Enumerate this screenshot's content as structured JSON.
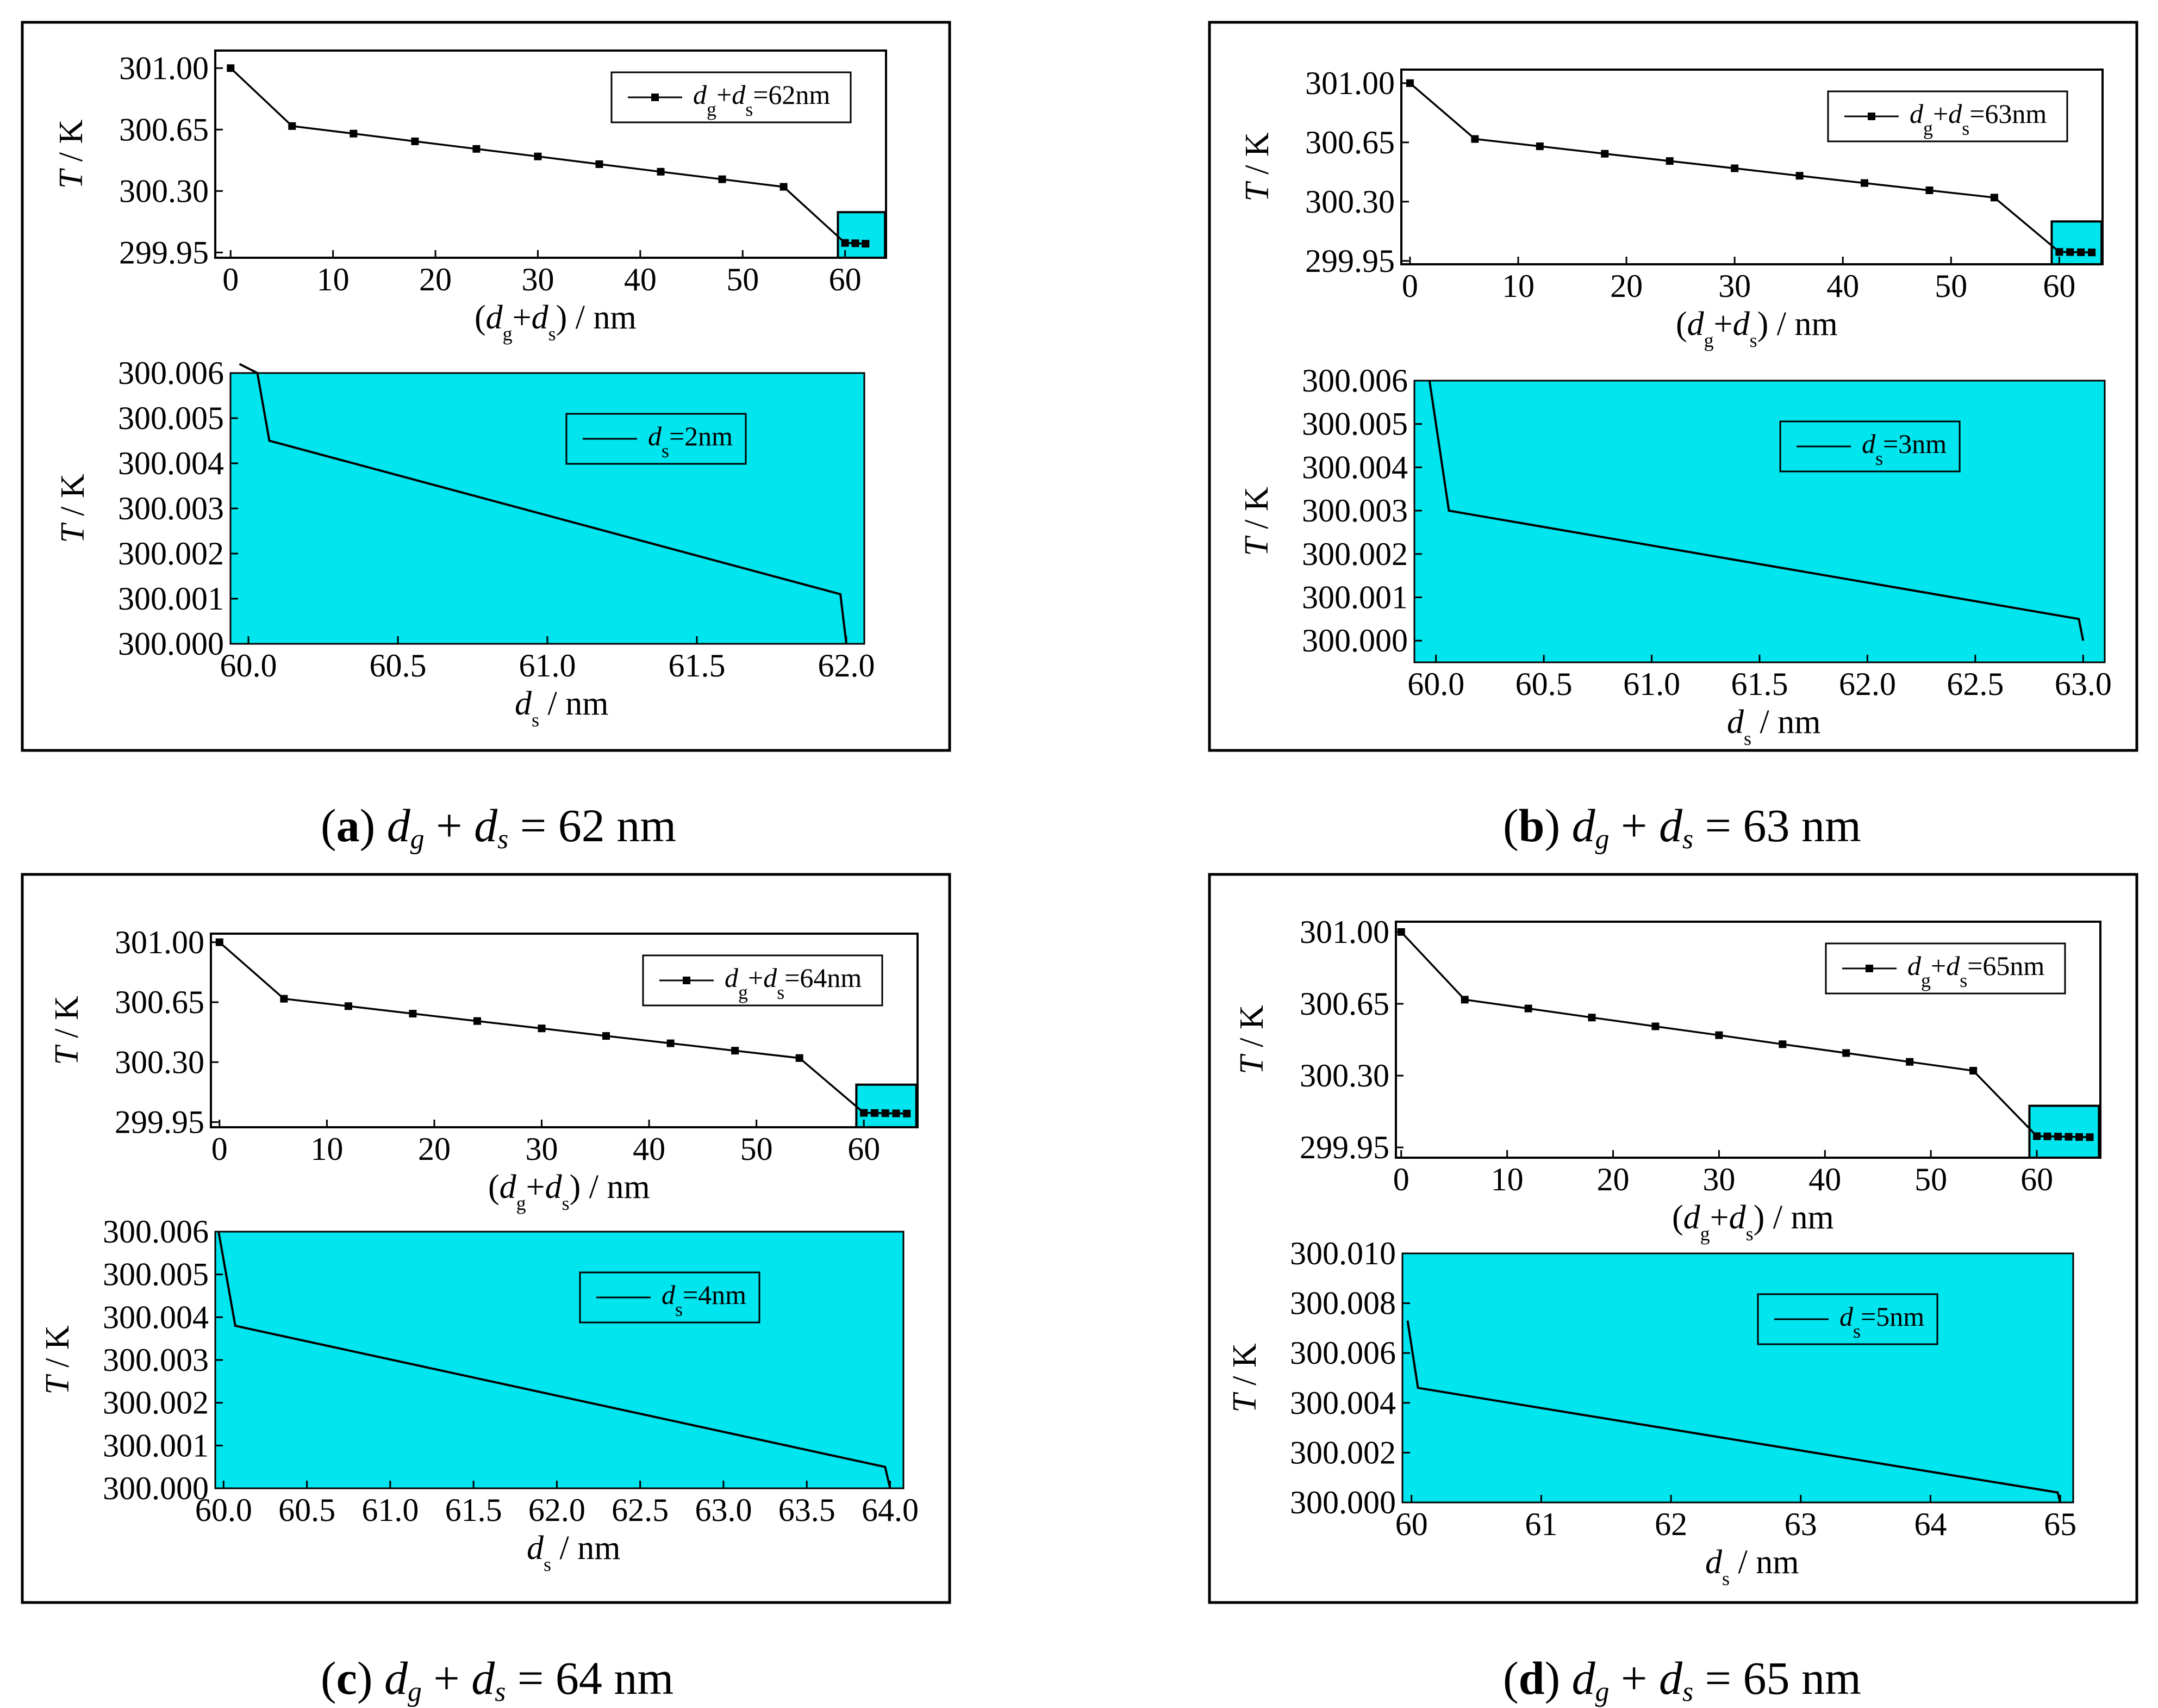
{
  "panels": [
    {
      "id": "a",
      "caption": {
        "letter": "a",
        "rhs": "62 nm"
      },
      "main": {
        "type": "line",
        "legend": "62nm",
        "ylabel_unit": "K",
        "xlabel_unit": "nm",
        "xlim": [
          -1.5,
          64
        ],
        "ylim": [
          299.92,
          301.1
        ],
        "xticks": [
          0,
          10,
          20,
          30,
          40,
          50,
          60
        ],
        "yticks": [
          "301.00",
          "300.65",
          "300.30",
          "299.95"
        ],
        "x": [
          0,
          6,
          12,
          18,
          24,
          30,
          36,
          42,
          48,
          54,
          60,
          61,
          62
        ],
        "y": [
          301.0,
          300.67,
          300.627,
          300.583,
          300.54,
          300.497,
          300.453,
          300.41,
          300.367,
          300.324,
          300.0045,
          300.0025,
          300.0
        ]
      },
      "zoom": {
        "type": "line",
        "legend": "2nm",
        "ylabel_unit": "K",
        "xlabel_unit": "nm",
        "xlim": [
          59.94,
          62.06
        ],
        "ylim": [
          300.0,
          300.006
        ],
        "xticks": [
          "60.0",
          "60.5",
          "61.0",
          "61.5",
          "62.0"
        ],
        "yticks": [
          "300.006",
          "300.005",
          "300.004",
          "300.003",
          "300.002",
          "300.001",
          "300.000"
        ],
        "x": [
          59.97,
          60.03,
          60.07,
          61.98,
          62.0
        ],
        "y": [
          300.0062,
          300.006,
          300.0045,
          300.0011,
          300.0
        ]
      }
    },
    {
      "id": "b",
      "caption": {
        "letter": "b",
        "rhs": "63 nm"
      },
      "main": {
        "type": "line",
        "legend": "63nm",
        "ylabel_unit": "K",
        "xlabel_unit": "nm",
        "xlim": [
          -0.8,
          64
        ],
        "ylim": [
          299.93,
          301.08
        ],
        "xticks": [
          0,
          10,
          20,
          30,
          40,
          50,
          60
        ],
        "yticks": [
          "301.00",
          "300.65",
          "300.30",
          "299.95"
        ],
        "x": [
          0,
          6,
          12,
          18,
          24,
          30,
          36,
          42,
          48,
          54,
          60,
          61,
          62,
          63
        ],
        "y": [
          301.0,
          300.67,
          300.627,
          300.583,
          300.54,
          300.497,
          300.453,
          300.41,
          300.367,
          300.324,
          300.003,
          300.002,
          300.001,
          300.0
        ]
      },
      "zoom": {
        "type": "line",
        "legend": "3nm",
        "ylabel_unit": "K",
        "xlabel_unit": "nm",
        "xlim": [
          59.9,
          63.1
        ],
        "ylim": [
          299.9995,
          300.006
        ],
        "xticks": [
          "60.0",
          "60.5",
          "61.0",
          "61.5",
          "62.0",
          "62.5",
          "63.0"
        ],
        "yticks": [
          "300.006",
          "300.005",
          "300.004",
          "300.003",
          "300.002",
          "300.001",
          "300.000"
        ],
        "x": [
          59.97,
          60.06,
          62.98,
          63.0
        ],
        "y": [
          300.006,
          300.003,
          300.0005,
          300.0
        ]
      }
    },
    {
      "id": "c",
      "caption": {
        "letter": "c",
        "rhs": "64 nm"
      },
      "main": {
        "type": "line",
        "legend": "64nm",
        "ylabel_unit": "K",
        "xlabel_unit": "nm",
        "xlim": [
          -0.8,
          65
        ],
        "ylim": [
          299.92,
          301.05
        ],
        "xticks": [
          0,
          10,
          20,
          30,
          40,
          50,
          60
        ],
        "yticks": [
          "301.00",
          "300.65",
          "300.30",
          "299.95"
        ],
        "x": [
          0,
          6,
          12,
          18,
          24,
          30,
          36,
          42,
          48,
          54,
          60,
          61,
          62,
          63,
          64
        ],
        "y": [
          301.0,
          300.67,
          300.627,
          300.583,
          300.54,
          300.497,
          300.453,
          300.41,
          300.367,
          300.324,
          300.004,
          300.003,
          300.002,
          300.001,
          300.0
        ]
      },
      "zoom": {
        "type": "line",
        "legend": "4nm",
        "ylabel_unit": "K",
        "xlabel_unit": "nm",
        "xlim": [
          59.95,
          64.08
        ],
        "ylim": [
          300.0,
          300.006
        ],
        "xticks": [
          "60.0",
          "60.5",
          "61.0",
          "61.5",
          "62.0",
          "62.5",
          "63.0",
          "63.5",
          "64.0"
        ],
        "yticks": [
          "300.006",
          "300.005",
          "300.004",
          "300.003",
          "300.002",
          "300.001",
          "300.000"
        ],
        "x": [
          59.97,
          60.07,
          63.97,
          64.0
        ],
        "y": [
          300.006,
          300.0038,
          300.0005,
          300.0
        ]
      }
    },
    {
      "id": "d",
      "caption": {
        "letter": "d",
        "rhs": "65 nm"
      },
      "main": {
        "type": "line",
        "legend": "65nm",
        "ylabel_unit": "K",
        "xlabel_unit": "nm",
        "xlim": [
          -0.5,
          66
        ],
        "ylim": [
          299.9,
          301.05
        ],
        "xticks": [
          0,
          10,
          20,
          30,
          40,
          50,
          60
        ],
        "yticks": [
          "301.00",
          "300.65",
          "300.30",
          "299.95"
        ],
        "x": [
          0,
          6,
          12,
          18,
          24,
          30,
          36,
          42,
          48,
          54,
          60,
          61,
          62,
          63,
          64,
          65
        ],
        "y": [
          301.0,
          300.67,
          300.627,
          300.583,
          300.54,
          300.497,
          300.453,
          300.41,
          300.367,
          300.324,
          300.005,
          300.004,
          300.003,
          300.002,
          300.001,
          300.0
        ]
      },
      "zoom": {
        "type": "line",
        "legend": "5nm",
        "ylabel_unit": "K",
        "xlabel_unit": "nm",
        "xlim": [
          59.93,
          65.1
        ],
        "ylim": [
          300.0,
          300.01
        ],
        "xticks": [
          "60",
          "61",
          "62",
          "63",
          "64",
          "65"
        ],
        "yticks": [
          "300.010",
          "300.008",
          "300.006",
          "300.004",
          "300.002",
          "300.000"
        ],
        "x": [
          59.97,
          60.05,
          64.98,
          65.0
        ],
        "y": [
          300.0073,
          300.0046,
          300.0004,
          300.0
        ]
      }
    }
  ],
  "colors": {
    "zoom_fill": "#00E5EE",
    "line": "#000000"
  }
}
